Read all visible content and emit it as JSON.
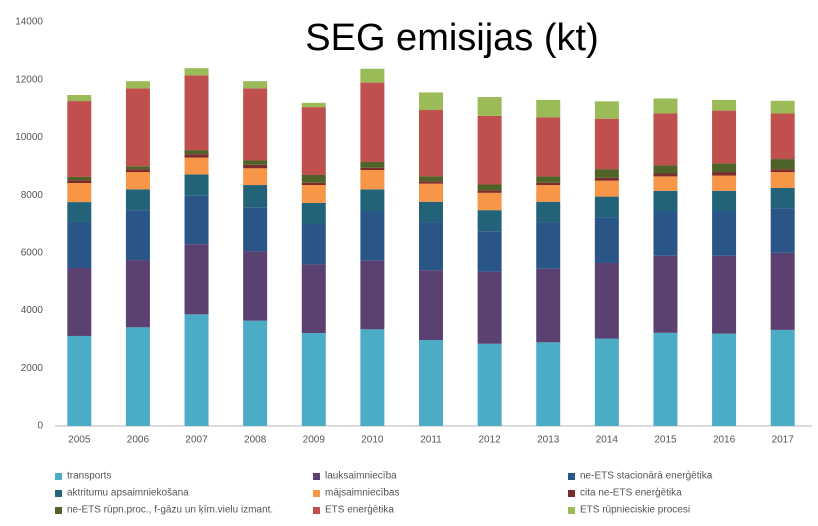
{
  "chart_data": {
    "type": "stacked_bar",
    "title": "SEG emisijas (kt)",
    "categories": [
      "2005",
      "2006",
      "2007",
      "2008",
      "2009",
      "2010",
      "2011",
      "2012",
      "2013",
      "2014",
      "2015",
      "2016",
      "2017"
    ],
    "ylim": [
      0,
      14000
    ],
    "yticks": [
      0,
      2000,
      4000,
      6000,
      8000,
      10000,
      12000,
      14000
    ],
    "series": [
      {
        "name": "transports",
        "color": "#4bacc6",
        "values": [
          3120,
          3420,
          3870,
          3650,
          3220,
          3350,
          2980,
          2850,
          2900,
          3030,
          3230,
          3200,
          3330
        ]
      },
      {
        "name": "lauksaimniecība",
        "color": "#5b4172",
        "values": [
          2355,
          2330,
          2430,
          2400,
          2380,
          2380,
          2420,
          2500,
          2550,
          2620,
          2670,
          2700,
          2670
        ]
      },
      {
        "name": "ne-ETS stacionārā enerģētika",
        "color": "#2a5587",
        "values": [
          1595,
          1730,
          1680,
          1530,
          1400,
          1720,
          1650,
          1400,
          1600,
          1580,
          1550,
          1550,
          1550
        ]
      },
      {
        "name": "aktritumu apsaimniekošana",
        "color": "#23637a",
        "values": [
          690,
          720,
          740,
          770,
          730,
          750,
          720,
          730,
          720,
          720,
          700,
          700,
          700
        ]
      },
      {
        "name": "mājsaimniecības",
        "color": "#f79646",
        "values": [
          660,
          600,
          580,
          580,
          620,
          670,
          630,
          600,
          580,
          550,
          500,
          530,
          550
        ]
      },
      {
        "name": "cita ne-ETS enerģētika",
        "color": "#7b2c2c",
        "values": [
          100,
          100,
          120,
          120,
          80,
          80,
          80,
          90,
          80,
          100,
          100,
          120,
          100
        ]
      },
      {
        "name": "ne-ETS rūpn.proc., f-gāzu un ķīm.vielu izmant.",
        "color": "#4f6228",
        "values": [
          110,
          100,
          140,
          150,
          270,
          200,
          170,
          200,
          220,
          300,
          280,
          300,
          350
        ]
      },
      {
        "name": "ETS enerģētika",
        "color": "#c0504d",
        "values": [
          2630,
          2700,
          2590,
          2500,
          2350,
          2750,
          2300,
          2380,
          2050,
          1750,
          1800,
          1830,
          1580
        ]
      },
      {
        "name": "ETS rūpnieciskie procesi",
        "color": "#9bbb59",
        "values": [
          210,
          250,
          250,
          250,
          150,
          480,
          610,
          650,
          600,
          600,
          520,
          370,
          440
        ]
      }
    ]
  }
}
